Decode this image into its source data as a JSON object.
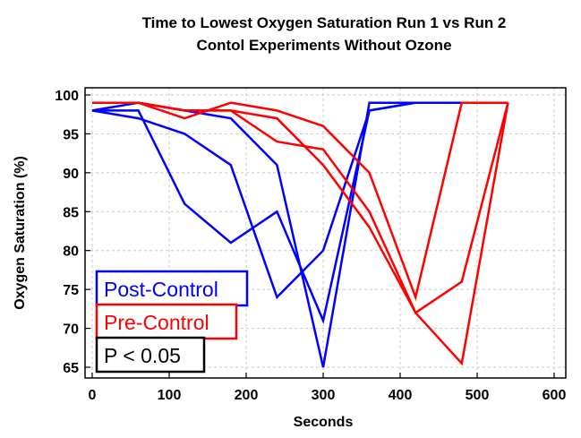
{
  "chart_data": {
    "type": "line",
    "title": "Time to Lowest Oxygen Saturation Run 1 vs Run 2",
    "subtitle": "Contol Experiments Without Ozone",
    "xlabel": "Seconds",
    "ylabel": "Oxygen Saturation (%)",
    "xlim": [
      0,
      600
    ],
    "ylim": [
      65,
      100
    ],
    "xticks": [
      "0",
      "100",
      "200",
      "300",
      "400",
      "500",
      "600"
    ],
    "yticks": [
      "65",
      "70",
      "75",
      "80",
      "85",
      "90",
      "95",
      "100"
    ],
    "grid": true,
    "legend_position": "bottom-left",
    "legend": {
      "entries": [
        "Post-Control",
        "Pre-Control"
      ],
      "annotation": "P < 0.05"
    },
    "colors": {
      "post": "#0000ff",
      "pre": "#ff0000",
      "annotation": "#000000"
    },
    "series": [
      {
        "group": "post",
        "x": [
          0,
          60,
          120,
          180,
          240,
          300,
          360,
          420,
          480,
          540
        ],
        "y": [
          98,
          97,
          95,
          91,
          74,
          80,
          98,
          99,
          99,
          99
        ]
      },
      {
        "group": "post",
        "x": [
          0,
          60,
          120,
          180,
          240,
          300,
          360,
          420,
          480,
          540
        ],
        "y": [
          98,
          99,
          98,
          97,
          91,
          65,
          99,
          99,
          99,
          99
        ]
      },
      {
        "group": "post",
        "x": [
          0,
          60,
          120,
          180,
          240,
          300,
          360,
          420,
          480,
          540
        ],
        "y": [
          98,
          98,
          86,
          81,
          85,
          71,
          98,
          99,
          99,
          99
        ]
      },
      {
        "group": "pre",
        "x": [
          0,
          60,
          120,
          180,
          240,
          300,
          360,
          420,
          480,
          540
        ],
        "y": [
          99,
          99,
          97,
          99,
          98,
          96,
          90,
          74,
          99,
          99
        ]
      },
      {
        "group": "pre",
        "x": [
          0,
          60,
          120,
          180,
          240,
          300,
          360,
          420,
          480,
          540
        ],
        "y": [
          99,
          99,
          98,
          98,
          94,
          93,
          85,
          72,
          76,
          99
        ]
      },
      {
        "group": "pre",
        "x": [
          0,
          60,
          120,
          180,
          240,
          300,
          360,
          420,
          480,
          540
        ],
        "y": [
          99,
          99,
          98,
          98,
          97,
          91,
          83,
          72,
          65.5,
          99
        ]
      }
    ]
  }
}
